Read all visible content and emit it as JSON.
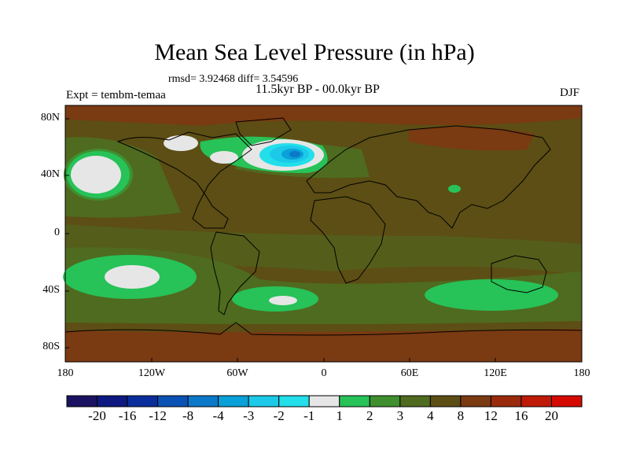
{
  "title": "Mean Sea Level Pressure (in hPa)",
  "stats": "rmsd= 3.92468 diff= 3.54596",
  "period": "11.5kyr BP - 00.0kyr BP",
  "experiment": "Expt = tembm-temaa",
  "season": "DJF",
  "lat_ticks": [
    "80N",
    "40N",
    "0",
    "40S",
    "80S"
  ],
  "lon_ticks": [
    "180",
    "120W",
    "60W",
    "0",
    "60E",
    "120E",
    "180"
  ],
  "colorbar": {
    "labels": [
      "-20",
      "-16",
      "-12",
      "-8",
      "-4",
      "-3",
      "-2",
      "-1",
      "1",
      "2",
      "3",
      "4",
      "8",
      "12",
      "16",
      "20"
    ],
    "colors": [
      "#1a1260",
      "#0d1880",
      "#0a2d9c",
      "#0b52b5",
      "#0b78c8",
      "#0aa0d8",
      "#1cc9e8",
      "#22dfea",
      "#e6e6e6",
      "#27c258",
      "#3f8f2f",
      "#4f6b1f",
      "#5c4e14",
      "#7a3a12",
      "#9a2a0c",
      "#bf1a08",
      "#d40a00"
    ]
  }
}
